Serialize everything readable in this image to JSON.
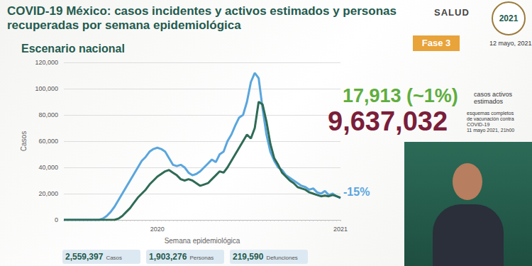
{
  "chart_data": {
    "type": "line",
    "title": "COVID-19 México: casos incidentes y activos estimados y personas recuperadas por semana epidemiológica",
    "subtitle": "Escenario nacional",
    "x_label": "Semana epidemiológica",
    "y_label": "Casos",
    "categories": [
      null,
      null,
      null,
      null,
      null,
      null,
      null,
      null,
      null,
      null,
      null,
      null,
      null,
      null,
      null,
      null,
      null,
      null,
      null,
      null,
      null,
      null,
      null,
      null,
      "2020",
      null,
      null,
      null,
      null,
      null,
      null,
      null,
      null,
      null,
      null,
      null,
      null,
      null,
      null,
      null,
      null,
      null,
      null,
      null,
      null,
      null,
      null,
      null,
      null,
      null,
      null,
      null,
      null,
      null,
      null,
      null,
      null,
      null,
      null,
      null,
      null,
      null,
      null,
      null,
      null,
      null,
      null,
      null,
      null,
      null,
      null,
      "2021"
    ],
    "series": [
      {
        "color": "#5aa6dd",
        "values": [
          0,
          0,
          0,
          0,
          0,
          0,
          0,
          0,
          0,
          0,
          1000,
          3000,
          6000,
          10000,
          15000,
          20000,
          25000,
          30000,
          35000,
          40000,
          45000,
          48000,
          52000,
          54000,
          55000,
          54000,
          52000,
          47000,
          42000,
          41000,
          42000,
          40000,
          36000,
          34000,
          35000,
          37000,
          40000,
          43000,
          46000,
          44000,
          50000,
          52000,
          60000,
          65000,
          72000,
          78000,
          80000,
          90000,
          105000,
          112000,
          108000,
          85000,
          65000,
          52000,
          45000,
          40000,
          38000,
          34000,
          32000,
          30000,
          28000,
          26000,
          25000,
          23000,
          24000,
          21000,
          20000,
          22000,
          19000,
          20000,
          18000,
          16500
        ]
      },
      {
        "color": "#2f6b55",
        "values": [
          0,
          0,
          0,
          0,
          0,
          0,
          0,
          0,
          0,
          0,
          0,
          0,
          0,
          0,
          1000,
          3000,
          6000,
          9000,
          13000,
          17000,
          20000,
          23000,
          27000,
          30000,
          33000,
          35000,
          37000,
          38000,
          36000,
          34000,
          31000,
          30000,
          31000,
          30000,
          28000,
          26000,
          27000,
          28000,
          31000,
          34000,
          37000,
          36000,
          40000,
          45000,
          50000,
          55000,
          60000,
          65000,
          62000,
          70000,
          90000,
          88000,
          75000,
          58000,
          47000,
          42000,
          36000,
          33000,
          30000,
          28000,
          25000,
          24000,
          23000,
          21000,
          20000,
          19000,
          18000,
          18500,
          18000,
          19000,
          18000,
          17000
        ]
      }
    ],
    "ylim": [
      0,
      120000
    ],
    "yticks": [
      0,
      {
        "value": 20000,
        "label": "20,000"
      },
      {
        "value": 40000,
        "label": "40,000"
      },
      {
        "value": 60000,
        "label": "60,000"
      },
      {
        "value": 80000,
        "label": "80,000"
      },
      {
        "value": 100000,
        "label": "100,000"
      },
      {
        "value": 120000,
        "label": "120,000"
      }
    ],
    "grid": true,
    "annotations": [
      {
        "text": "-15%",
        "color": "#5aa6dd"
      }
    ]
  },
  "page": {
    "logo": "SALUD",
    "logo_year": "2021",
    "badge": "Fase 3",
    "date": "12 mayo, 2021",
    "stats": [
      {
        "value": "17,913 (~1%)",
        "color": "#5fae3e",
        "label": [
          "casos activos",
          "estimados"
        ]
      },
      {
        "value": "9,637,032",
        "color": "#7a1e3a",
        "label": [
          "esquemas completos",
          "de vacunación contra",
          "COVID-19",
          "11 mayo 2021, 21h00"
        ]
      }
    ],
    "footer": [
      {
        "value": "2,559,397",
        "label": "Casos"
      },
      {
        "value": "1,903,276",
        "label": "Personas"
      },
      {
        "value": "219,590",
        "label": "Defunciones"
      }
    ]
  }
}
